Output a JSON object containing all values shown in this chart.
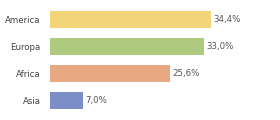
{
  "categories": [
    "America",
    "Europa",
    "Africa",
    "Asia"
  ],
  "values": [
    34.4,
    33.0,
    25.6,
    7.0
  ],
  "labels": [
    "34,4%",
    "33,0%",
    "25,6%",
    "7,0%"
  ],
  "colors": [
    "#f2d479",
    "#afc97e",
    "#e8a882",
    "#7b8ec8"
  ],
  "background_color": "#ffffff",
  "xlim": [
    0,
    42
  ],
  "bar_height": 0.62,
  "label_fontsize": 6.2,
  "tick_fontsize": 6.2
}
